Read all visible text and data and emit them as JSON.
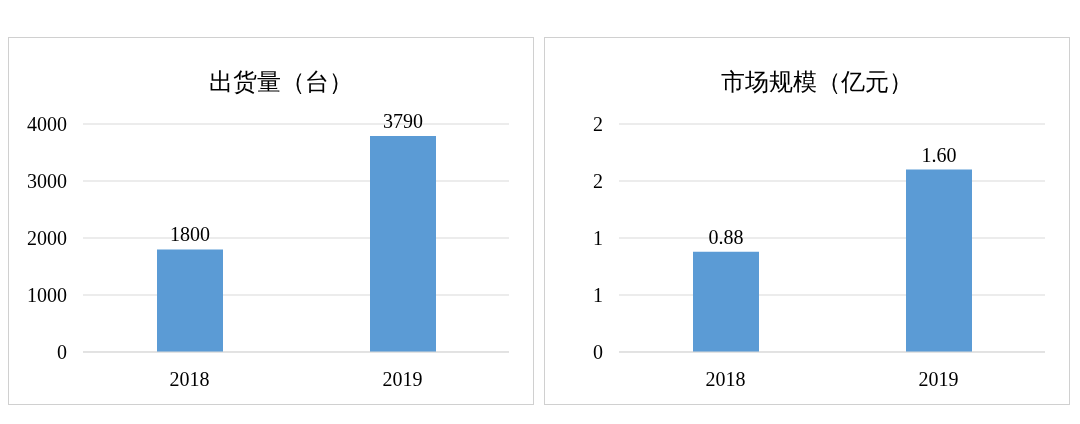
{
  "chart_data": [
    {
      "type": "bar",
      "title": "出货量（台）",
      "categories": [
        "2018",
        "2019"
      ],
      "values": [
        1800,
        3790
      ],
      "color": "#5b9bd5",
      "ylim": [
        0,
        4000
      ],
      "yticks": [
        0,
        1000,
        2000,
        3000,
        4000
      ],
      "grid": "y",
      "data_labels": true
    },
    {
      "type": "bar",
      "title": "市场规模（亿元）",
      "categories": [
        "2018",
        "2019"
      ],
      "values": [
        0.88,
        1.6
      ],
      "value_labels": [
        "0.88",
        "1.60"
      ],
      "color": "#5b9bd5",
      "ylim": [
        0,
        2
      ],
      "yticks": [
        0,
        {
          "value": 0.5,
          "label": "1"
        },
        {
          "value": 1,
          "label": "1"
        },
        {
          "value": 1.5,
          "label": "2"
        },
        {
          "value": 2,
          "label": "2"
        }
      ],
      "grid": "y"
    }
  ]
}
